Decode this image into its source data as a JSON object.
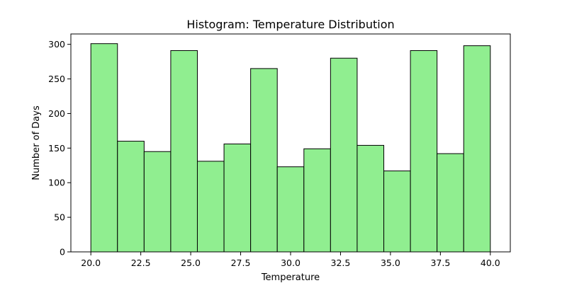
{
  "chart_data": {
    "type": "bar",
    "title": "Histogram: Temperature Distribution",
    "xlabel": "Temperature",
    "ylabel": "Number of Days",
    "bin_edges": [
      20.0,
      21.333,
      22.667,
      24.0,
      25.333,
      26.667,
      28.0,
      29.333,
      30.667,
      32.0,
      33.333,
      34.667,
      36.0,
      37.333,
      38.667,
      40.0
    ],
    "values": [
      301,
      160,
      145,
      291,
      131,
      156,
      265,
      123,
      149,
      280,
      154,
      117,
      291,
      142,
      298
    ],
    "xlim": [
      19.0,
      41.0
    ],
    "ylim": [
      0,
      315
    ],
    "x_ticks": [
      20.0,
      22.5,
      25.0,
      27.5,
      30.0,
      32.5,
      35.0,
      37.5,
      40.0
    ],
    "x_tick_labels": [
      "20.0",
      "22.5",
      "25.0",
      "27.5",
      "30.0",
      "32.5",
      "35.0",
      "37.5",
      "40.0"
    ],
    "y_ticks": [
      0,
      50,
      100,
      150,
      200,
      250,
      300
    ],
    "y_tick_labels": [
      "0",
      "50",
      "100",
      "150",
      "200",
      "250",
      "300"
    ],
    "bar_color": "#90ee90",
    "edge_color": "#000000",
    "grid": false,
    "legend": false
  }
}
